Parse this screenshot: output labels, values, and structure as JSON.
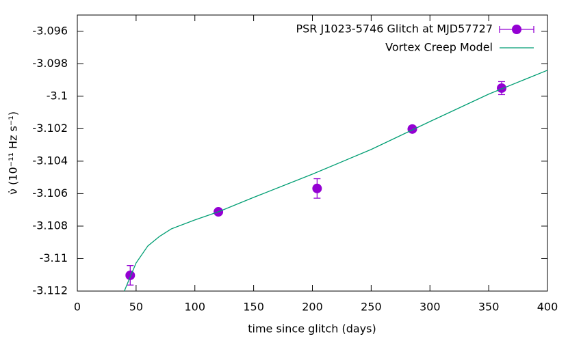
{
  "chart_data": {
    "type": "errorbar-line",
    "xlabel": "time since glitch (days)",
    "ylabel": "ν̇ (10⁻¹¹ Hz s⁻¹)",
    "xlim": [
      0,
      400
    ],
    "xticks": [
      0,
      50,
      100,
      150,
      200,
      250,
      300,
      350,
      400
    ],
    "ylim": [
      -3.112,
      -3.095
    ],
    "yticks": [
      -3.112,
      -3.11,
      -3.108,
      -3.106,
      -3.104,
      -3.102,
      -3.1,
      -3.098,
      -3.096
    ],
    "legend": "top-right",
    "series": [
      {
        "name": "PSR J1023-5746 Glitch at MJD57727",
        "kind": "points",
        "color": "#9400d3",
        "x": [
          45,
          120,
          204,
          285,
          361
        ],
        "values": [
          -3.11103,
          -3.10712,
          -3.10568,
          -3.10202,
          -3.0995
        ],
        "errors": [
          0.0006,
          0.0001,
          0.0006,
          0.0001,
          0.0004
        ]
      },
      {
        "name": "Vortex Creep Model",
        "kind": "line",
        "color": "#009e73",
        "x": [
          40,
          45,
          50,
          60,
          70,
          80,
          100,
          120,
          150,
          200,
          250,
          300,
          350,
          400
        ],
        "values": [
          -3.112,
          -3.11112,
          -3.11027,
          -3.10922,
          -3.10863,
          -3.10817,
          -3.10762,
          -3.10712,
          -3.10623,
          -3.1048,
          -3.10328,
          -3.10156,
          -3.09987,
          -3.0984
        ]
      }
    ]
  }
}
